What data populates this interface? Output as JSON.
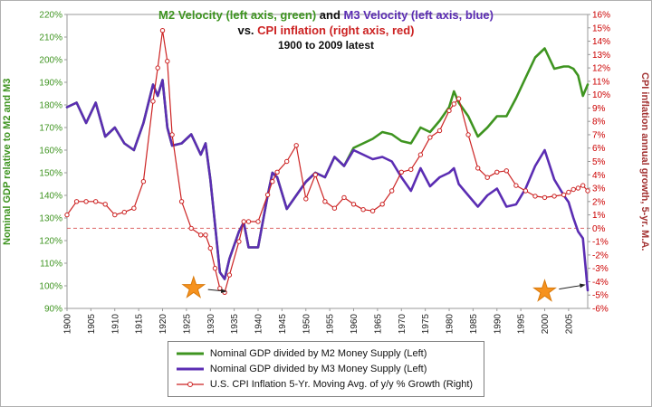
{
  "title": {
    "line1_m2": "M2 Velocity (left axis, green)",
    "line1_and": " and ",
    "line1_m3": "M3 Velocity (left axis, blue)",
    "line2_vs": "vs. ",
    "line2_cpi": "CPI inflation (right axis, red)",
    "line3": "1900 to 2009 latest"
  },
  "colors": {
    "green": "#3E9420",
    "purple": "#5B2DB3",
    "red": "#CC2222",
    "red_tick": "#CC0000",
    "dark_red": "#A33333",
    "orange": "#F6921E",
    "zero_line": "#DD6666"
  },
  "legend": {
    "items": [
      {
        "label": "Nominal GDP divided by M2 Money Supply (Left)"
      },
      {
        "label": "Nominal GDP divided by M3 Money Supply (Left)"
      },
      {
        "label": "U.S. CPI Inflation 5-Yr. Moving Avg. of y/y % Growth (Right)"
      }
    ]
  },
  "chart_data": {
    "type": "line",
    "title": "M2 Velocity and M3 Velocity vs. CPI inflation, 1900 to 2009 latest",
    "left_axis": {
      "label": "Nominal GDP relative to M2 and M3",
      "min": 90,
      "max": 220,
      "tick_step": 10,
      "unit": "%"
    },
    "right_axis": {
      "label": "CPI inflation annual growth, 5-yr. M.A.",
      "min": -6,
      "max": 16,
      "tick_step": 1,
      "unit": "%"
    },
    "x_axis": {
      "min": 1900,
      "max": 2009,
      "tick_start": 1900,
      "tick_end": 2005,
      "tick_step": 5
    },
    "zero_line": {
      "axis": "right",
      "value": 0,
      "style": "dashed"
    },
    "years": [
      1900,
      1902,
      1904,
      1906,
      1908,
      1910,
      1912,
      1914,
      1916,
      1918,
      1919,
      1920,
      1921,
      1922,
      1924,
      1926,
      1928,
      1929,
      1930,
      1931,
      1932,
      1933,
      1934,
      1936,
      1937,
      1938,
      1940,
      1942,
      1943,
      1944,
      1946,
      1948,
      1950,
      1952,
      1954,
      1956,
      1958,
      1960,
      1962,
      1964,
      1966,
      1968,
      1970,
      1972,
      1974,
      1976,
      1978,
      1980,
      1981,
      1982,
      1984,
      1986,
      1988,
      1990,
      1992,
      1994,
      1996,
      1998,
      2000,
      2002,
      2004,
      2005,
      2006,
      2007,
      2008,
      2009
    ],
    "series": [
      {
        "name": "Nominal GDP divided by M2 Money Supply (Left)",
        "short_name": "m2-velocity",
        "axis": "left",
        "color": "#3E9420",
        "width": 2.6,
        "markers": false,
        "values": [
          179,
          181,
          172,
          181,
          166,
          170,
          163,
          160,
          172,
          189,
          184,
          191,
          170,
          162,
          163,
          167,
          158,
          163,
          147,
          127,
          106,
          103,
          112,
          124,
          128,
          117,
          117,
          140,
          150,
          148,
          134,
          140,
          146,
          150,
          148,
          157,
          153,
          161,
          163,
          165,
          168,
          167,
          164,
          163,
          170,
          168,
          173,
          179,
          186,
          181,
          175,
          166,
          170,
          175,
          175,
          183,
          192,
          201,
          205,
          196,
          197,
          197,
          196,
          193,
          184,
          189
        ]
      },
      {
        "name": "Nominal GDP divided by M3 Money Supply (Left)",
        "short_name": "m3-velocity",
        "axis": "left",
        "color": "#5B2DB3",
        "width": 2.6,
        "markers": false,
        "values": [
          179,
          181,
          172,
          181,
          166,
          170,
          163,
          160,
          172,
          189,
          184,
          191,
          170,
          162,
          163,
          167,
          158,
          163,
          147,
          127,
          106,
          103,
          112,
          124,
          128,
          117,
          117,
          140,
          150,
          148,
          134,
          140,
          146,
          150,
          148,
          157,
          153,
          160,
          158,
          156,
          157,
          155,
          148,
          142,
          152,
          144,
          148,
          150,
          152,
          145,
          140,
          135,
          140,
          143,
          135,
          136,
          143,
          153,
          160,
          147,
          140,
          137,
          130,
          124,
          121,
          98
        ]
      },
      {
        "name": "U.S. CPI Inflation 5-Yr. Moving Avg. of y/y % Growth (Right)",
        "short_name": "cpi-inflation",
        "axis": "right",
        "color": "#CC2222",
        "width": 1.2,
        "markers": true,
        "values": [
          1.0,
          2.0,
          2.0,
          2.0,
          1.8,
          1.0,
          1.2,
          1.5,
          3.5,
          9.5,
          12.0,
          14.8,
          12.5,
          7.0,
          2.0,
          0.0,
          -0.5,
          -0.5,
          -1.5,
          -3.0,
          -4.5,
          -4.8,
          -3.5,
          -1.0,
          0.5,
          0.5,
          0.5,
          2.5,
          3.5,
          4.2,
          5.0,
          6.2,
          2.2,
          4.0,
          2.0,
          1.5,
          2.3,
          1.8,
          1.4,
          1.3,
          1.8,
          2.8,
          4.2,
          4.4,
          5.5,
          6.8,
          7.3,
          8.8,
          9.3,
          9.7,
          7.0,
          4.5,
          3.8,
          4.2,
          4.3,
          3.2,
          2.8,
          2.4,
          2.3,
          2.4,
          2.5,
          2.7,
          2.9,
          3.0,
          3.2,
          2.8
        ]
      }
    ],
    "annotations": [
      {
        "type": "star",
        "x_year": 1926.5,
        "left_value": 99,
        "arrow_to": {
          "x_year": 1933.5,
          "left_value": 97.5
        }
      },
      {
        "type": "star",
        "x_year": 2000,
        "left_value": 97.5,
        "arrow_to": {
          "x_year": 2008.6,
          "left_value": 100.5
        }
      }
    ]
  }
}
